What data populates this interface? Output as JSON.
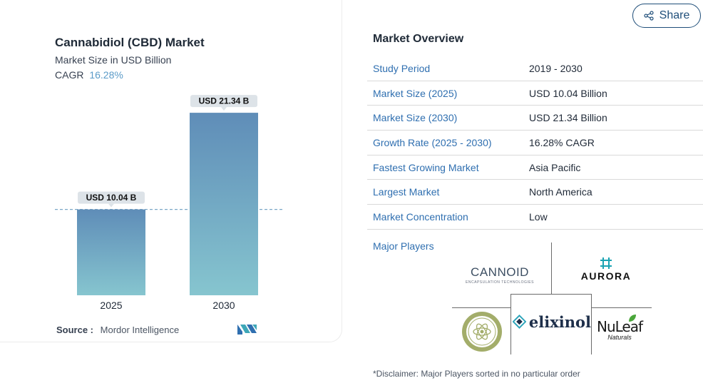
{
  "chart": {
    "title": "Cannabidiol (CBD) Market",
    "subtitle": "Market Size in USD Billion",
    "cagr_label": "CAGR",
    "cagr_value": "16.28%",
    "source_label": "Source :",
    "source_value": "Mordor Intelligence"
  },
  "chart_data": {
    "type": "bar",
    "categories": [
      "2025",
      "2030"
    ],
    "values": [
      10.04,
      21.34
    ],
    "data_labels": [
      "USD 10.04 B",
      "USD 21.34 B"
    ],
    "title": "Cannabidiol (CBD) Market",
    "subtitle": "Market Size in USD Billion",
    "reference_line": 10.04,
    "ylim": [
      0,
      22.6
    ],
    "colors": {
      "bar_top": "#5f8db8",
      "bar_bottom": "#86c5cf",
      "label_bg": "#dde3e8",
      "ref_line": "#7aa7c7"
    }
  },
  "share": {
    "label": "Share"
  },
  "overview": {
    "title": "Market Overview",
    "rows": [
      {
        "key": "Study Period",
        "value": "2019 - 2030"
      },
      {
        "key": "Market Size (2025)",
        "value": "USD 10.04 Billion"
      },
      {
        "key": "Market Size (2030)",
        "value": "USD 21.34 Billion"
      },
      {
        "key": "Growth Rate (2025 - 2030)",
        "value": "16.28% CAGR"
      },
      {
        "key": "Fastest Growing Market",
        "value": "Asia Pacific"
      },
      {
        "key": "Largest Market",
        "value": "North America"
      },
      {
        "key": "Market Concentration",
        "value": "Low"
      }
    ]
  },
  "players": {
    "label": "Major Players",
    "cannoid": {
      "name": "CANNOID",
      "tagline": "ENCAPSULATION TECHNOLOGIES"
    },
    "aurora": {
      "name": "AURORA"
    },
    "medical_marijuana": {
      "name": "MEDICAL MARIJUANA, INC."
    },
    "elixinol": {
      "name": "elixinol"
    },
    "nuleaf": {
      "name": "NuLeaf",
      "sub": "Naturals"
    }
  },
  "disclaimer": "*Disclaimer: Major Players sorted in no particular order",
  "colors": {
    "link_blue": "#2f6fb0",
    "share_border": "#1f4e79"
  }
}
